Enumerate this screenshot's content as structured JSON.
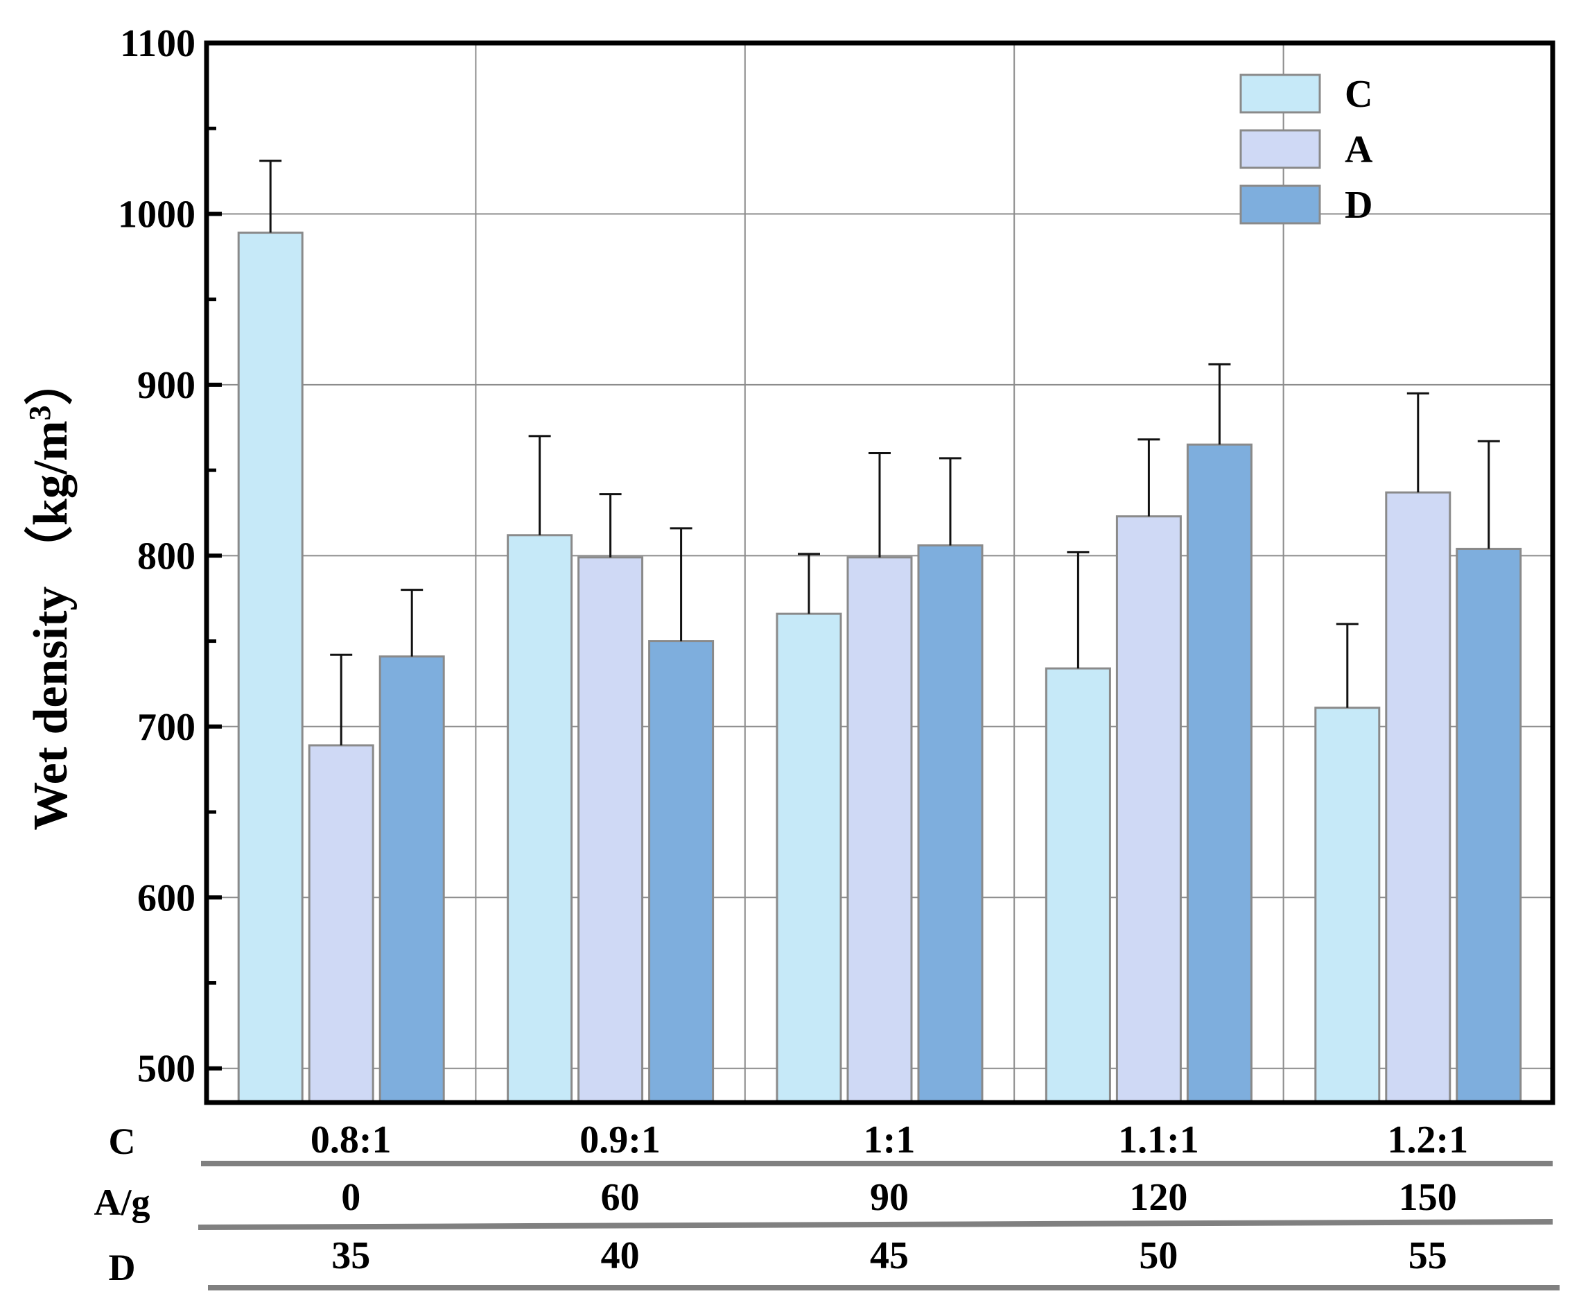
{
  "chart_data": {
    "type": "bar",
    "ylabel": "Wet density",
    "yunit": {
      "prefix": "（kg/m",
      "sup": "3",
      "suffix": "）"
    },
    "ylim": [
      480,
      1100
    ],
    "yticks": [
      500,
      600,
      700,
      800,
      900,
      1000,
      1100
    ],
    "grid": true,
    "legend_position": "top-right",
    "categories": [
      "0.8:1",
      "0.9:1",
      "1:1",
      "1.1:1",
      "1.2:1"
    ],
    "series": [
      {
        "name": "C",
        "values": [
          989,
          812,
          766,
          734,
          711
        ],
        "errors": [
          42,
          58,
          35,
          68,
          49
        ],
        "color": "#c6e9f8"
      },
      {
        "name": "A",
        "values": [
          689,
          799,
          799,
          823,
          837
        ],
        "errors": [
          53,
          37,
          61,
          45,
          58
        ],
        "color": "#cfd9f5"
      },
      {
        "name": "D",
        "values": [
          741,
          750,
          806,
          865,
          804
        ],
        "errors": [
          39,
          66,
          51,
          47,
          63
        ],
        "color": "#7eaedd"
      }
    ],
    "category_table": [
      {
        "title": "C",
        "values": [
          "0.8:1",
          "0.9:1",
          "1:1",
          "1.1:1",
          "1.2:1"
        ]
      },
      {
        "title": "A/g",
        "values": [
          "0",
          "60",
          "90",
          "120",
          "150"
        ]
      },
      {
        "title": "D",
        "values": [
          "35",
          "40",
          "45",
          "50",
          "55"
        ]
      }
    ]
  }
}
